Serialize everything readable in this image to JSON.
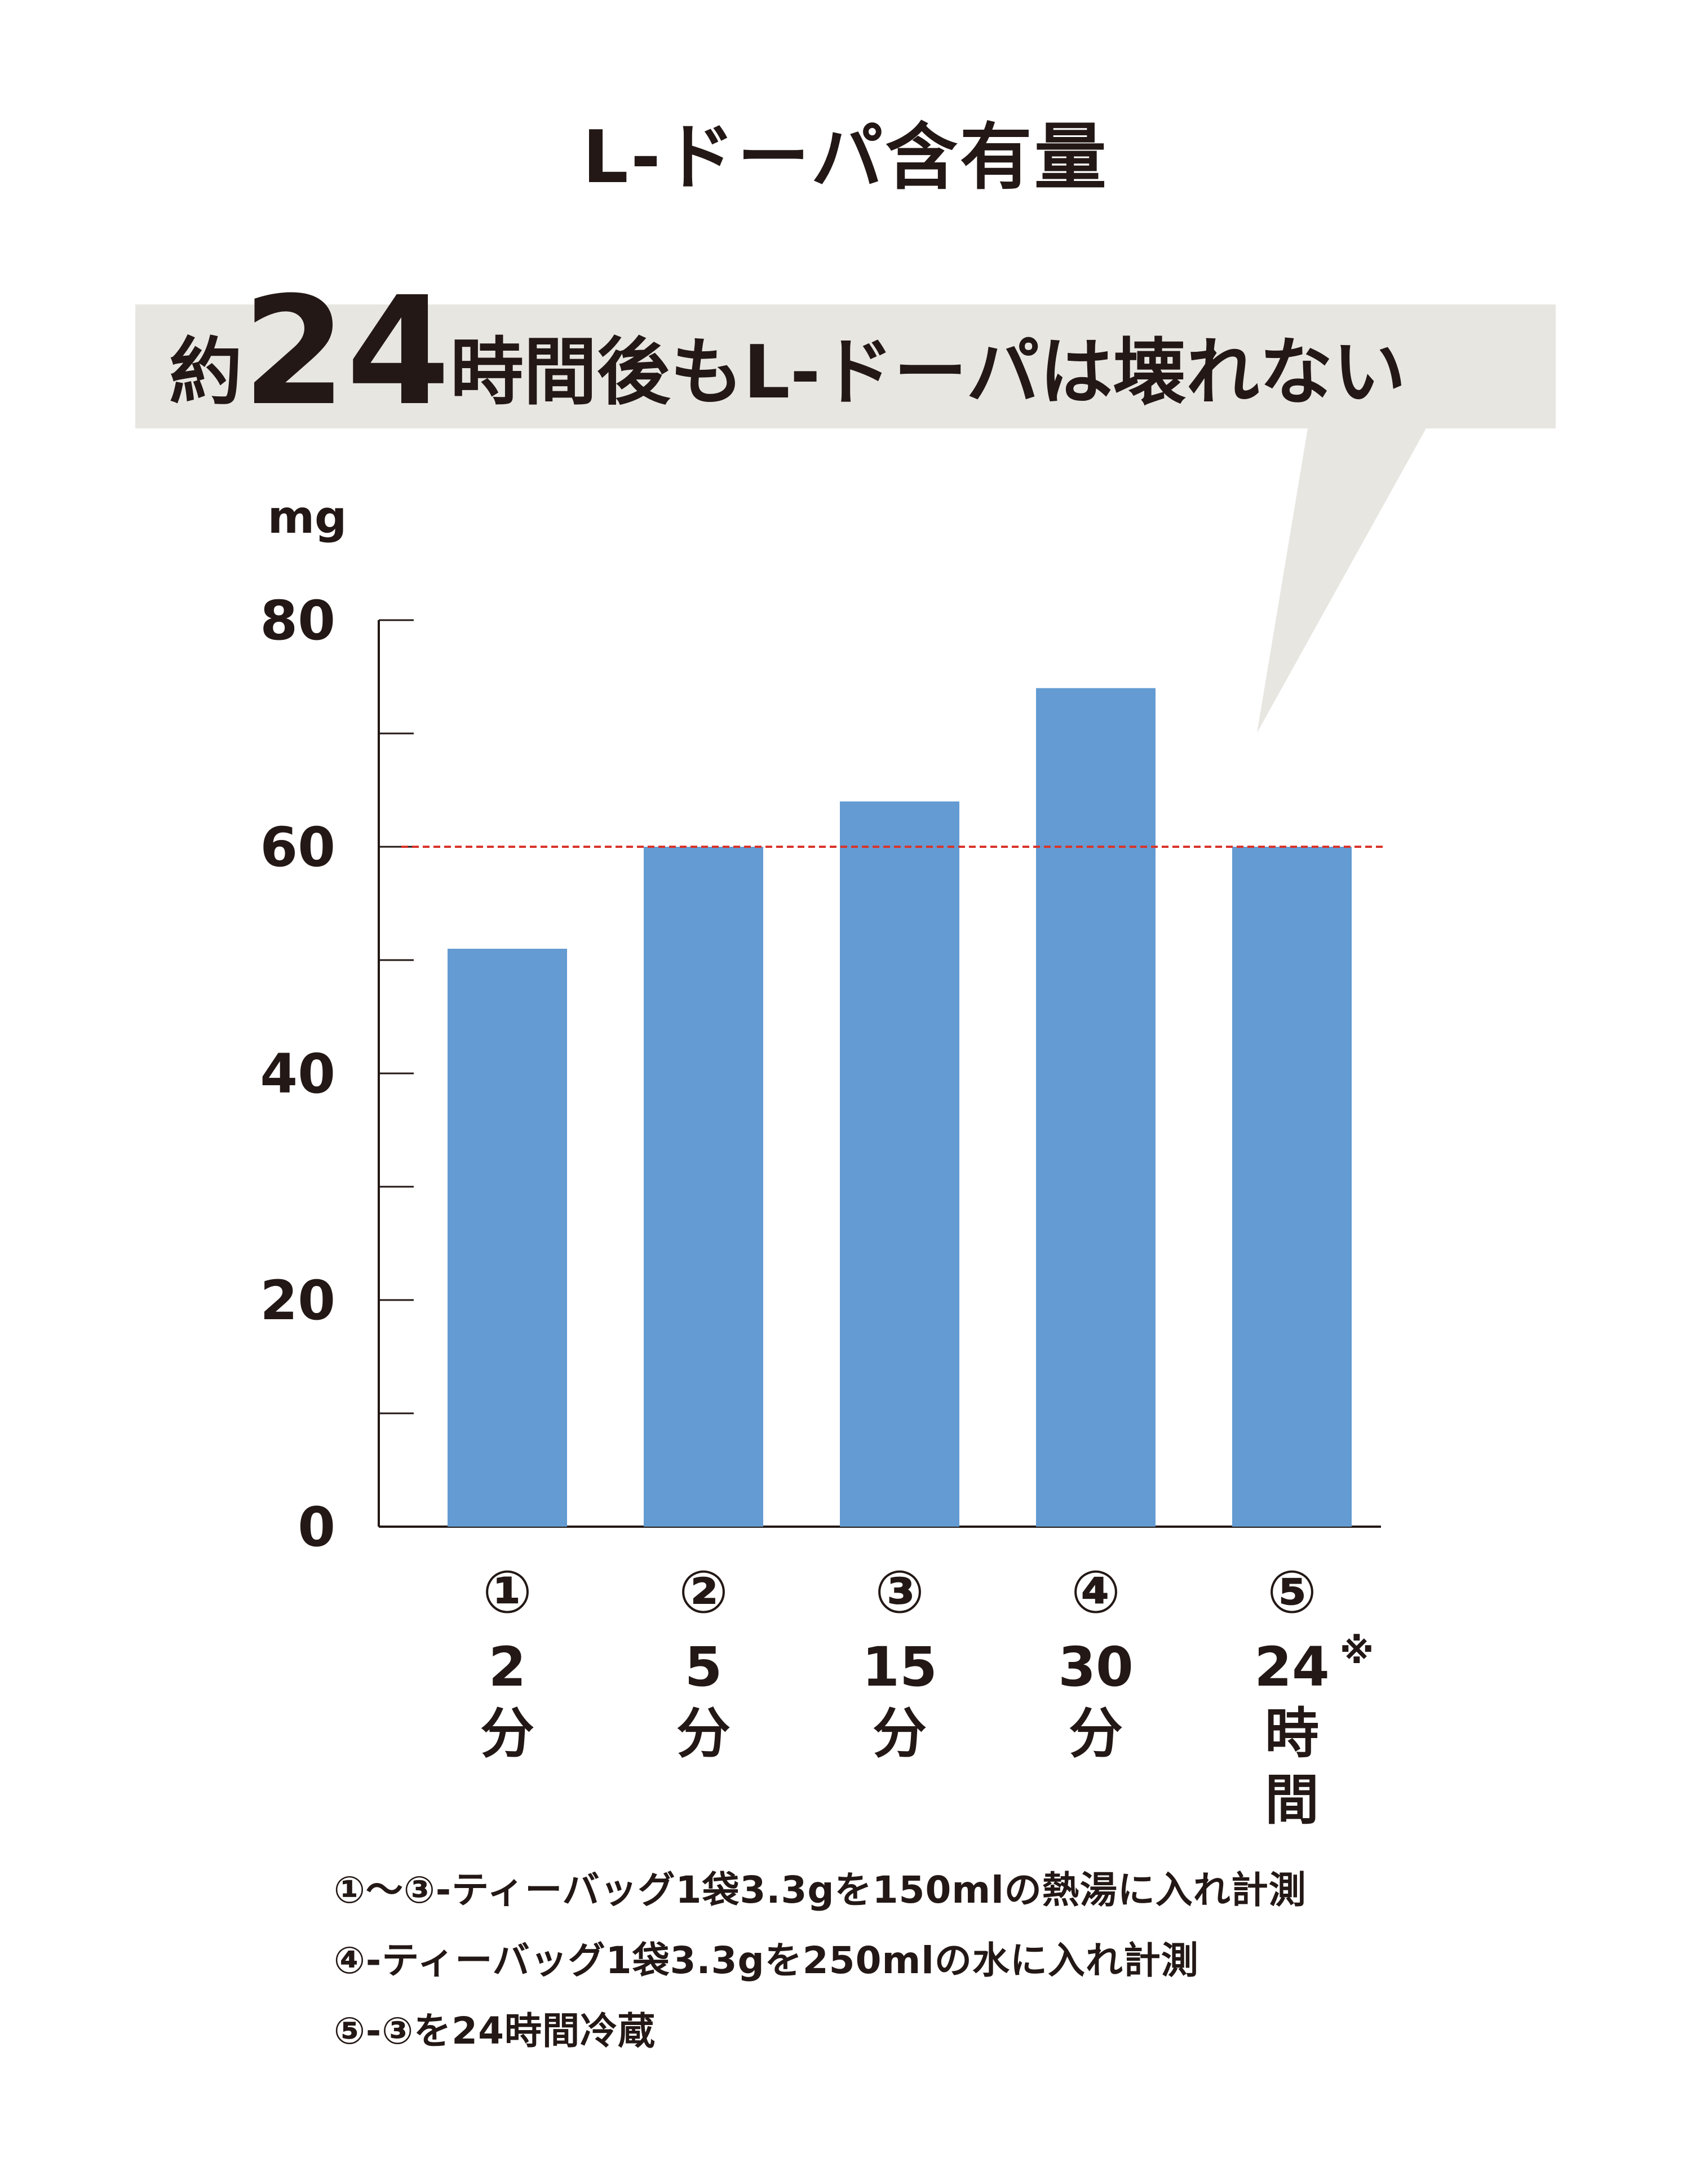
{
  "chart_data": {
    "type": "bar",
    "title": "L-ドーパ含有量",
    "callout": {
      "prefix": "約",
      "number": "24",
      "suffix": "時間後もL-ドーパは壊れない"
    },
    "ylabel": "mg",
    "ylim": [
      0,
      80
    ],
    "yticks": [
      "0",
      "20",
      "40",
      "60",
      "80"
    ],
    "minor_tick_step": 10,
    "reference_line": 60,
    "categories": [
      {
        "index": "①",
        "lines": [
          "2",
          "分"
        ],
        "note": ""
      },
      {
        "index": "②",
        "lines": [
          "5",
          "分"
        ],
        "note": ""
      },
      {
        "index": "③",
        "lines": [
          "15",
          "分"
        ],
        "note": ""
      },
      {
        "index": "④",
        "lines": [
          "30",
          "分"
        ],
        "note": ""
      },
      {
        "index": "⑤",
        "lines": [
          "24",
          "時",
          "間"
        ],
        "note": "※"
      }
    ],
    "values": [
      51,
      60,
      64,
      74,
      60
    ],
    "grid": false,
    "colors": {
      "bar": "#639bd2",
      "reference": "#d9342b",
      "callout": "#e8e6e1",
      "text": "#231815"
    }
  },
  "footnotes": [
    "①〜③-ティーバッグ1袋3.3gを150mlの熱湯に入れ計測",
    "④-ティーバッグ1袋3.3gを250mlの水に入れ計測",
    "⑤-③を24時間冷蔵"
  ]
}
